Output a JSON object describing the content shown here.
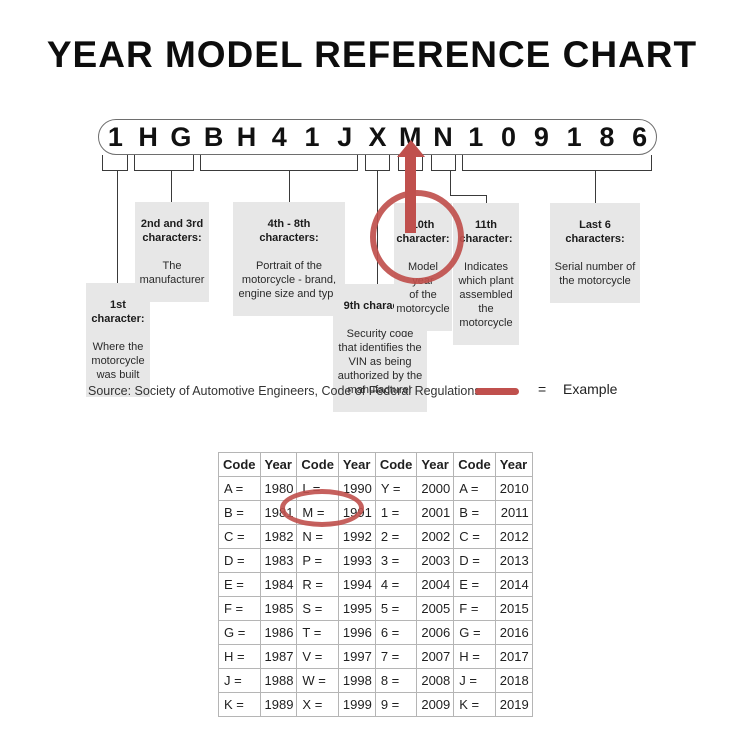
{
  "title": "YEAR MODEL REFERENCE CHART",
  "vin": {
    "chars": [
      "1",
      "H",
      "G",
      "B",
      "H",
      "4",
      "1",
      "J",
      "X",
      "M",
      "N",
      "1",
      "0",
      "9",
      "1",
      "8",
      "6"
    ]
  },
  "callouts": {
    "c1": {
      "heading": "1st\ncharacter:",
      "body": "Where the\nmotorcycle\nwas built"
    },
    "c23": {
      "heading": "2nd and 3rd\ncharacters:",
      "body": "The\nmanufacturer"
    },
    "c48": {
      "heading": "4th - 8th\ncharacters:",
      "body": "Portrait of the\nmotorcycle - brand,\nengine size and type"
    },
    "c9": {
      "heading": "9th character:",
      "body": "Security code\nthat identifies the\nVIN as being\nauthorized by the\nmanufacturer"
    },
    "c10": {
      "heading": "10th\ncharacter:",
      "body": "Model year\nof the\nmotorcycle"
    },
    "c11": {
      "heading": "11th\ncharacter:",
      "body": "Indicates\nwhich plant\nassembled\nthe\nmotorcycle"
    },
    "clast6": {
      "heading": "Last 6\ncharacters:",
      "body": "Serial number of\nthe motorcycle"
    }
  },
  "source_line": "Source:  Society of Automotive Engineers, Code of Federal Regulations",
  "legend": {
    "equals": "=",
    "label": "Example"
  },
  "colors": {
    "accent_red": "#c0504d",
    "callout_gray": "#e7e7e7"
  },
  "table": {
    "headers": [
      "Code",
      "Year",
      "Code",
      "Year",
      "Code",
      "Year",
      "Code",
      "Year"
    ],
    "rows": [
      [
        "A =",
        "1980",
        "L =",
        "1990",
        "Y =",
        "2000",
        "A =",
        "2010"
      ],
      [
        "B =",
        "1981",
        "M =",
        "1991",
        "1 =",
        "2001",
        "B =",
        "2011"
      ],
      [
        "C =",
        "1982",
        "N =",
        "1992",
        "2 =",
        "2002",
        "C =",
        "2012"
      ],
      [
        "D =",
        "1983",
        "P =",
        "1993",
        "3 =",
        "2003",
        "D =",
        "2013"
      ],
      [
        "E =",
        "1984",
        "R =",
        "1994",
        "4 =",
        "2004",
        "E =",
        "2014"
      ],
      [
        "F =",
        "1985",
        "S =",
        "1995",
        "5 =",
        "2005",
        "F =",
        "2015"
      ],
      [
        "G =",
        "1986",
        "T =",
        "1996",
        "6 =",
        "2006",
        "G =",
        "2016"
      ],
      [
        "H =",
        "1987",
        "V =",
        "1997",
        "7 =",
        "2007",
        "H =",
        "2017"
      ],
      [
        "J =",
        "1988",
        "W =",
        "1998",
        "8 =",
        "2008",
        "J =",
        "2018"
      ],
      [
        "K =",
        "1989",
        "X =",
        "1999",
        "9 =",
        "2009",
        "K =",
        "2019"
      ]
    ],
    "circled_cell": "M = 1991"
  }
}
